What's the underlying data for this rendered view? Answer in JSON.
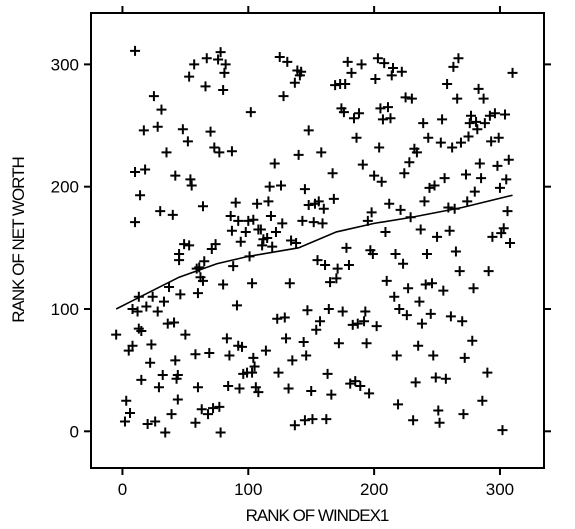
{
  "chart_data": {
    "type": "scatter",
    "title": "",
    "xlabel": "RANK OF WINDEX1",
    "ylabel": "RANK OF NET WORTH",
    "xlim": [
      -25,
      335
    ],
    "ylim": [
      -30,
      342
    ],
    "xticks": [
      0,
      100,
      200,
      300
    ],
    "yticks": [
      0,
      100,
      200,
      300
    ],
    "xtick_labels": [
      "0",
      "100",
      "200",
      "300"
    ],
    "ytick_labels": [
      "0",
      "100",
      "200",
      "300"
    ],
    "grid": false,
    "legend": "none",
    "marker": "+",
    "color": "#000000",
    "series": [
      {
        "points": [
          [
            -5,
            79
          ],
          [
            2,
            8
          ],
          [
            3,
            25
          ],
          [
            5,
            66
          ],
          [
            6,
            15
          ],
          [
            8,
            70
          ],
          [
            8,
            100
          ],
          [
            10,
            212
          ],
          [
            10,
            311
          ],
          [
            10,
            171
          ],
          [
            12,
            98
          ],
          [
            13,
            84
          ],
          [
            13,
            110
          ],
          [
            14,
            193
          ],
          [
            15,
            82
          ],
          [
            15,
            42
          ],
          [
            17,
            246
          ],
          [
            18,
            214
          ],
          [
            19,
            102
          ],
          [
            20,
            6
          ],
          [
            22,
            56
          ],
          [
            23,
            71
          ],
          [
            24,
            110
          ],
          [
            25,
            274
          ],
          [
            26,
            8
          ],
          [
            28,
            249
          ],
          [
            28,
            98
          ],
          [
            29,
            36
          ],
          [
            30,
            180
          ],
          [
            31,
            263
          ],
          [
            32,
            46
          ],
          [
            33,
            106
          ],
          [
            34,
            -1
          ],
          [
            35,
            228
          ],
          [
            36,
            88
          ],
          [
            37,
            118
          ],
          [
            39,
            14
          ],
          [
            40,
            177
          ],
          [
            41,
            89
          ],
          [
            42,
            58
          ],
          [
            42,
            209
          ],
          [
            43,
            43
          ],
          [
            44,
            26
          ],
          [
            44,
            46
          ],
          [
            45,
            145
          ],
          [
            45,
            140
          ],
          [
            46,
            112
          ],
          [
            48,
            247
          ],
          [
            49,
            153
          ],
          [
            50,
            79
          ],
          [
            52,
            237
          ],
          [
            53,
            290
          ],
          [
            53,
            152
          ],
          [
            54,
            206
          ],
          [
            55,
            201
          ],
          [
            57,
            300
          ],
          [
            58,
            7
          ],
          [
            58,
            63
          ],
          [
            59,
            133
          ],
          [
            60,
            113
          ],
          [
            60,
            36
          ],
          [
            61,
            134
          ],
          [
            62,
            126
          ],
          [
            63,
            18
          ],
          [
            64,
            184
          ],
          [
            64,
            123
          ],
          [
            65,
            139
          ],
          [
            66,
            282
          ],
          [
            67,
            305
          ],
          [
            68,
            14
          ],
          [
            69,
            64
          ],
          [
            70,
            245
          ],
          [
            71,
            149
          ],
          [
            72,
            19
          ],
          [
            73,
            232
          ],
          [
            74,
            153
          ],
          [
            76,
            304
          ],
          [
            77,
            228
          ],
          [
            77,
            20
          ],
          [
            78,
            310
          ],
          [
            78,
            -1
          ],
          [
            80,
            120
          ],
          [
            80,
            279
          ],
          [
            81,
            293
          ],
          [
            82,
            300
          ],
          [
            83,
            76
          ],
          [
            84,
            37
          ],
          [
            85,
            62
          ],
          [
            86,
            176
          ],
          [
            87,
            164
          ],
          [
            87,
            229
          ],
          [
            88,
            135
          ],
          [
            90,
            187
          ],
          [
            91,
            103
          ],
          [
            92,
            70
          ],
          [
            92,
            172
          ],
          [
            93,
            35
          ],
          [
            94,
            155
          ],
          [
            95,
            69
          ],
          [
            96,
            47
          ],
          [
            98,
            163
          ],
          [
            99,
            48
          ],
          [
            100,
            172
          ],
          [
            101,
            143
          ],
          [
            102,
            261
          ],
          [
            103,
            48
          ],
          [
            103,
            121
          ],
          [
            104,
            173
          ],
          [
            104,
            60
          ],
          [
            105,
            53
          ],
          [
            106,
            36
          ],
          [
            107,
            186
          ],
          [
            108,
            165
          ],
          [
            108,
            32
          ],
          [
            110,
            165
          ],
          [
            111,
            152
          ],
          [
            112,
            157
          ],
          [
            114,
            66
          ],
          [
            115,
            158
          ],
          [
            116,
            188
          ],
          [
            117,
            200
          ],
          [
            118,
            176
          ],
          [
            119,
            151
          ],
          [
            121,
            219
          ],
          [
            122,
            163
          ],
          [
            123,
            92
          ],
          [
            124,
            48
          ],
          [
            125,
            306
          ],
          [
            126,
            201
          ],
          [
            127,
            170
          ],
          [
            128,
            274
          ],
          [
            129,
            93
          ],
          [
            130,
            76
          ],
          [
            131,
            302
          ],
          [
            132,
            35
          ],
          [
            133,
            121
          ],
          [
            134,
            156
          ],
          [
            135,
            58
          ],
          [
            137,
            285
          ],
          [
            137,
            5
          ],
          [
            138,
            154
          ],
          [
            139,
            295
          ],
          [
            140,
            226
          ],
          [
            141,
            291
          ],
          [
            142,
            294
          ],
          [
            143,
            172
          ],
          [
            144,
            73
          ],
          [
            145,
            9
          ],
          [
            145,
            198
          ],
          [
            146,
            62
          ],
          [
            147,
            99
          ],
          [
            148,
            185
          ],
          [
            148,
            246
          ],
          [
            150,
            33
          ],
          [
            151,
            10
          ],
          [
            152,
            171
          ],
          [
            153,
            186
          ],
          [
            154,
            83
          ],
          [
            155,
            140
          ],
          [
            156,
            188
          ],
          [
            157,
            90
          ],
          [
            158,
            228
          ],
          [
            159,
            170
          ],
          [
            160,
            182
          ],
          [
            161,
            136
          ],
          [
            162,
            10
          ],
          [
            163,
            47
          ],
          [
            164,
            100
          ],
          [
            165,
            122
          ],
          [
            166,
            30
          ],
          [
            167,
            211
          ],
          [
            168,
            190
          ],
          [
            169,
            283
          ],
          [
            170,
            125
          ],
          [
            171,
            133
          ],
          [
            172,
            72
          ],
          [
            173,
            284
          ],
          [
            174,
            264
          ],
          [
            175,
            98
          ],
          [
            176,
            261
          ],
          [
            177,
            284
          ],
          [
            178,
            150
          ],
          [
            179,
            302
          ],
          [
            180,
            136
          ],
          [
            181,
            39
          ],
          [
            182,
            293
          ],
          [
            183,
            87
          ],
          [
            184,
            256
          ],
          [
            185,
            41
          ],
          [
            186,
            240
          ],
          [
            187,
            88
          ],
          [
            188,
            260
          ],
          [
            189,
            37
          ],
          [
            190,
            300
          ],
          [
            191,
            218
          ],
          [
            192,
            90
          ],
          [
            193,
            98
          ],
          [
            194,
            72
          ],
          [
            195,
            172
          ],
          [
            196,
            31
          ],
          [
            197,
            148
          ],
          [
            198,
            179
          ],
          [
            199,
            145
          ],
          [
            200,
            209
          ],
          [
            201,
            288
          ],
          [
            202,
            86
          ],
          [
            203,
            305
          ],
          [
            204,
            232
          ],
          [
            205,
            264
          ],
          [
            206,
            204
          ],
          [
            207,
            255
          ],
          [
            208,
            301
          ],
          [
            209,
            163
          ],
          [
            210,
            123
          ],
          [
            211,
            265
          ],
          [
            212,
            186
          ],
          [
            213,
            256
          ],
          [
            214,
            291
          ],
          [
            215,
            297
          ],
          [
            216,
            110
          ],
          [
            217,
            145
          ],
          [
            218,
            62
          ],
          [
            219,
            22
          ],
          [
            220,
            100
          ],
          [
            221,
            181
          ],
          [
            222,
            294
          ],
          [
            223,
            137
          ],
          [
            224,
            211
          ],
          [
            225,
            273
          ],
          [
            226,
            95
          ],
          [
            227,
            117
          ],
          [
            228,
            220
          ],
          [
            229,
            175
          ],
          [
            230,
            272
          ],
          [
            231,
            9
          ],
          [
            232,
            231
          ],
          [
            233,
            40
          ],
          [
            234,
            228
          ],
          [
            235,
            70
          ],
          [
            236,
            106
          ],
          [
            237,
            165
          ],
          [
            238,
            88
          ],
          [
            239,
            252
          ],
          [
            240,
            188
          ],
          [
            241,
            120
          ],
          [
            242,
            145
          ],
          [
            243,
            240
          ],
          [
            244,
            199
          ],
          [
            245,
            96
          ],
          [
            246,
            121
          ],
          [
            247,
            62
          ],
          [
            248,
            201
          ],
          [
            249,
            44
          ],
          [
            250,
            159
          ],
          [
            251,
            17
          ],
          [
            252,
            7
          ],
          [
            253,
            236
          ],
          [
            254,
            255
          ],
          [
            255,
            115
          ],
          [
            256,
            207
          ],
          [
            257,
            43
          ],
          [
            258,
            284
          ],
          [
            259,
            183
          ],
          [
            260,
            164
          ],
          [
            261,
            94
          ],
          [
            262,
            232
          ],
          [
            263,
            298
          ],
          [
            264,
            182
          ],
          [
            265,
            147
          ],
          [
            266,
            272
          ],
          [
            267,
            305
          ],
          [
            268,
            131
          ],
          [
            269,
            236
          ],
          [
            270,
            90
          ],
          [
            271,
            14
          ],
          [
            272,
            60
          ],
          [
            273,
            210
          ],
          [
            274,
            188
          ],
          [
            275,
            241
          ],
          [
            276,
            252
          ],
          [
            277,
            258
          ],
          [
            278,
            74
          ],
          [
            279,
            117
          ],
          [
            280,
            196
          ],
          [
            281,
            253
          ],
          [
            282,
            247
          ],
          [
            283,
            280
          ],
          [
            284,
            219
          ],
          [
            285,
            207
          ],
          [
            286,
            25
          ],
          [
            287,
            272
          ],
          [
            288,
            252
          ],
          [
            290,
            48
          ],
          [
            291,
            131
          ],
          [
            292,
            258
          ],
          [
            293,
            237
          ],
          [
            294,
            159
          ],
          [
            296,
            260
          ],
          [
            298,
            217
          ],
          [
            299,
            240
          ],
          [
            300,
            199
          ],
          [
            301,
            162
          ],
          [
            302,
            1
          ],
          [
            303,
            166
          ],
          [
            304,
            259
          ],
          [
            305,
            206
          ],
          [
            306,
            180
          ],
          [
            307,
            222
          ],
          [
            308,
            154
          ],
          [
            310,
            293
          ]
        ]
      }
    ],
    "trend": {
      "type": "smooth",
      "points": [
        [
          -5,
          100
        ],
        [
          20,
          113
        ],
        [
          45,
          126
        ],
        [
          75,
          137
        ],
        [
          100,
          143
        ],
        [
          140,
          150
        ],
        [
          170,
          163
        ],
        [
          200,
          170
        ],
        [
          230,
          175
        ],
        [
          270,
          183
        ],
        [
          310,
          193
        ]
      ]
    }
  }
}
